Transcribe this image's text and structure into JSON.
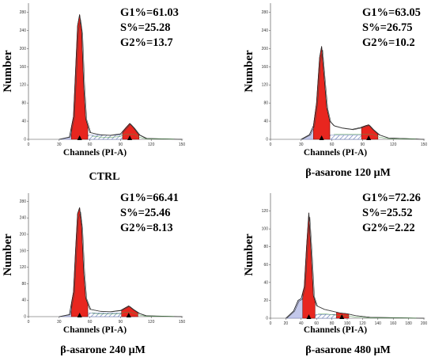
{
  "chart_data": [
    {
      "type": "area",
      "caption": "CTRL",
      "xlabel": "Channels (PI-A)",
      "ylabel": "Number",
      "xlim": [
        0,
        150
      ],
      "ylim": [
        0,
        300
      ],
      "xticks": [
        0,
        30,
        60,
        90,
        120,
        150
      ],
      "yticks": [
        0,
        40,
        80,
        120,
        160,
        200,
        240,
        280
      ],
      "peaks": {
        "g1": 50,
        "g2": 99
      },
      "stats": [
        "G1%=61.03",
        "S%=25.28",
        "G2%=13.7"
      ],
      "histogram": {
        "x": [
          30,
          40,
          44,
          46,
          48,
          50,
          52,
          54,
          56,
          60,
          70,
          80,
          90,
          95,
          99,
          103,
          108,
          115,
          150
        ],
        "y": [
          0,
          5,
          50,
          150,
          250,
          275,
          240,
          120,
          45,
          15,
          10,
          9,
          12,
          25,
          35,
          25,
          10,
          2,
          0
        ]
      }
    },
    {
      "type": "area",
      "caption": "β-asarone 120 μM",
      "xlabel": "Channels (PI-A)",
      "ylabel": "Number",
      "xlim": [
        0,
        150
      ],
      "ylim": [
        0,
        300
      ],
      "xticks": [
        0,
        30,
        60,
        90,
        120,
        150
      ],
      "yticks": [
        0,
        40,
        80,
        120,
        160,
        200,
        240,
        280
      ],
      "peaks": {
        "g1": 50,
        "g2": 96
      },
      "stats": [
        "G1%=63.05",
        "S%=26.75",
        "G2%=10.2"
      ],
      "histogram": {
        "x": [
          30,
          38,
          42,
          45,
          48,
          50,
          52,
          55,
          58,
          62,
          70,
          80,
          88,
          93,
          96,
          100,
          106,
          115,
          150
        ],
        "y": [
          0,
          10,
          30,
          80,
          180,
          205,
          150,
          70,
          40,
          30,
          25,
          22,
          26,
          30,
          32,
          22,
          10,
          3,
          0
        ]
      }
    },
    {
      "type": "area",
      "caption": "β-asarone 240 μM",
      "xlabel": "Channels (PI-A)",
      "ylabel": "Number",
      "xlim": [
        0,
        150
      ],
      "ylim": [
        0,
        300
      ],
      "xticks": [
        0,
        30,
        60,
        90,
        120,
        150
      ],
      "yticks": [
        0,
        40,
        80,
        120,
        160,
        200,
        240,
        280
      ],
      "peaks": {
        "g1": 50,
        "g2": 98
      },
      "stats": [
        "G1%=66.41",
        "S%=25.46",
        "G2%=8.13"
      ],
      "histogram": {
        "x": [
          30,
          40,
          44,
          46,
          48,
          50,
          52,
          54,
          56,
          60,
          70,
          80,
          90,
          95,
          98,
          102,
          108,
          115,
          150
        ],
        "y": [
          0,
          5,
          60,
          160,
          250,
          265,
          220,
          110,
          45,
          18,
          13,
          12,
          15,
          22,
          26,
          18,
          8,
          2,
          0
        ]
      }
    },
    {
      "type": "area",
      "caption": "β-asarone 480 μM",
      "xlabel": "Channels (PI-A)",
      "ylabel": "Number",
      "xlim": [
        0,
        200
      ],
      "ylim": [
        0,
        140
      ],
      "xticks": [
        0,
        20,
        40,
        60,
        80,
        100,
        120,
        140,
        160,
        180,
        200
      ],
      "yticks": [
        0,
        20,
        40,
        60,
        80,
        100,
        120
      ],
      "peaks": {
        "g1": 50,
        "g2": 93
      },
      "stats": [
        "G1%=72.26",
        "S%=25.52",
        "G2%=2.22"
      ],
      "histogram": {
        "x": [
          20,
          30,
          36,
          40,
          44,
          47,
          50,
          53,
          56,
          60,
          70,
          80,
          90,
          100,
          110,
          130,
          200
        ],
        "y": [
          0,
          8,
          20,
          22,
          35,
          80,
          118,
          75,
          25,
          14,
          10,
          8,
          6,
          5,
          3,
          1,
          0
        ]
      }
    }
  ]
}
